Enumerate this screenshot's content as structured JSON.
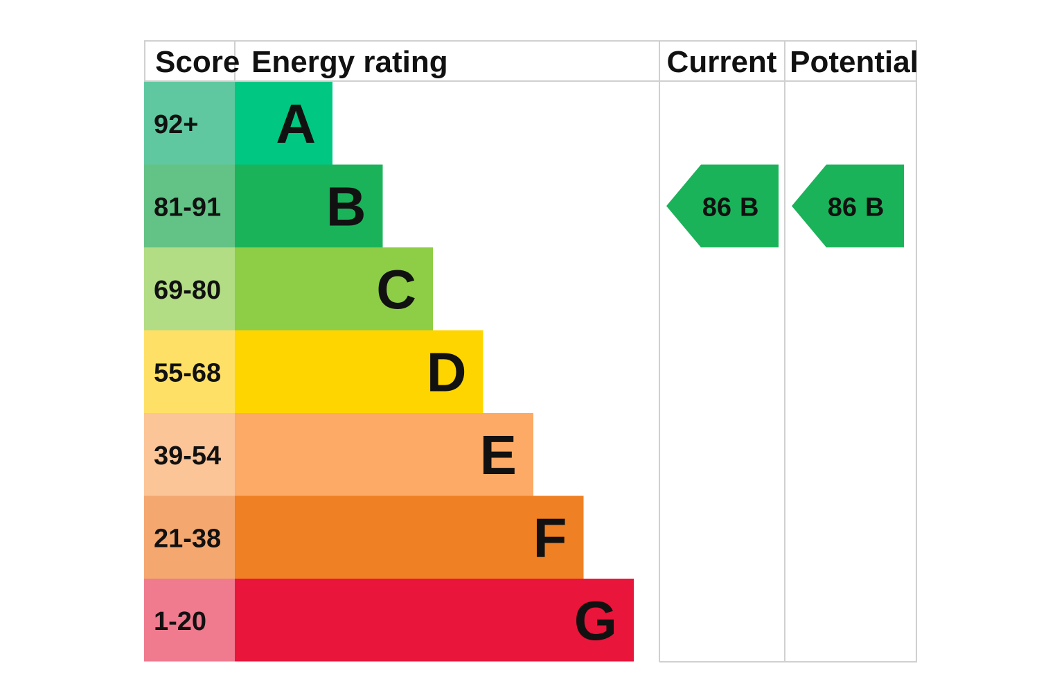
{
  "chart_data": {
    "type": "table",
    "headers": {
      "score": "Score",
      "rating": "Energy rating",
      "current": "Current",
      "potential": "Potential"
    },
    "bands": [
      {
        "score": "92+",
        "letter": "A",
        "color": "#00c781",
        "score_color": "#5fc8a0"
      },
      {
        "score": "81-91",
        "letter": "B",
        "color": "#1bb35a",
        "score_color": "#63c285"
      },
      {
        "score": "69-80",
        "letter": "C",
        "color": "#8dce46",
        "score_color": "#b2dd84"
      },
      {
        "score": "55-68",
        "letter": "D",
        "color": "#ffd500",
        "score_color": "#ffe066"
      },
      {
        "score": "39-54",
        "letter": "E",
        "color": "#fcaa65",
        "score_color": "#fcc597"
      },
      {
        "score": "21-38",
        "letter": "F",
        "color": "#ef8023",
        "score_color": "#f4a870"
      },
      {
        "score": "1-20",
        "letter": "G",
        "color": "#e9153b",
        "score_color": "#f07a8e"
      }
    ],
    "current": {
      "value": 86,
      "letter": "B",
      "color": "#1bb35a"
    },
    "potential": {
      "value": 86,
      "letter": "B",
      "color": "#1bb35a"
    }
  }
}
